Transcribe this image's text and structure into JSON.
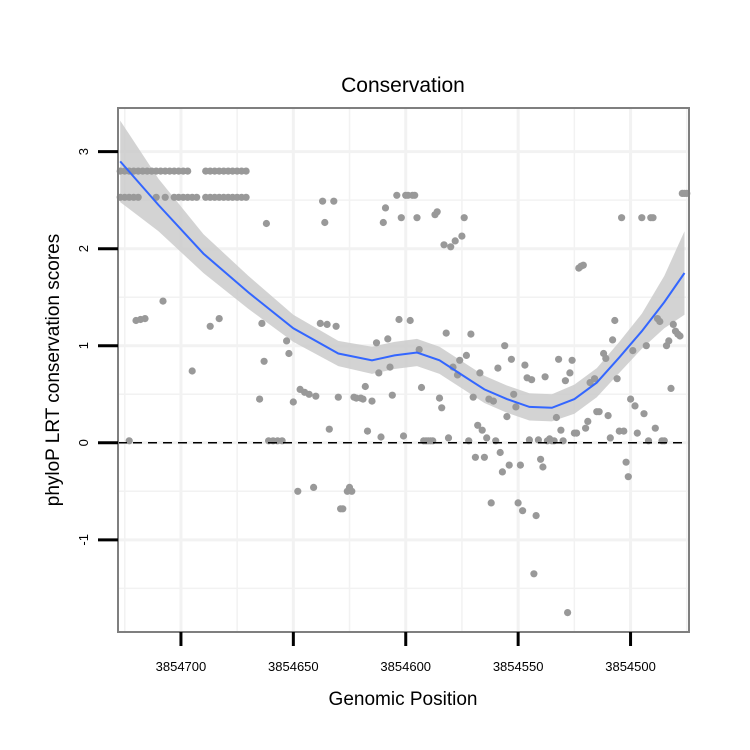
{
  "chart_data": {
    "type": "scatter",
    "title": "Conservation",
    "xlabel": "Genomic Position",
    "ylabel": "phyloP LRT conservation scores",
    "x_reversed": true,
    "xlim": [
      3854728,
      3854474
    ],
    "ylim": [
      -1.95,
      3.45
    ],
    "x_ticks": [
      3854700,
      3854650,
      3854600,
      3854550,
      3854500
    ],
    "x_tick_labels": [
      "3854700",
      "3854650",
      "3854600",
      "3854550",
      "3854500"
    ],
    "y_ticks": [
      -1,
      0,
      1,
      2,
      3
    ],
    "y_tick_labels": [
      "-1",
      "0",
      "1",
      "2",
      "3"
    ],
    "grid": true,
    "reference_line": {
      "y": 0,
      "style": "dashed"
    },
    "colors": {
      "points": "#999999",
      "smooth_line": "#3366FF",
      "confidence_band": "#C8C8C8",
      "panel_border": "#7F7F7F",
      "grid": "#F2F2F2"
    },
    "series": [
      {
        "values": [
          [
            3854727,
            2.53
          ],
          [
            3854725,
            2.53
          ],
          [
            3854723,
            2.53
          ],
          [
            3854721,
            2.53
          ],
          [
            3854719,
            2.53
          ],
          [
            3854727,
            2.8
          ],
          [
            3854725,
            2.8
          ],
          [
            3854723,
            2.8
          ],
          [
            3854721,
            2.8
          ],
          [
            3854719,
            2.8
          ],
          [
            3854717,
            2.8
          ],
          [
            3854715,
            2.8
          ],
          [
            3854713,
            2.8
          ],
          [
            3854711,
            2.8
          ],
          [
            3854709,
            2.8
          ],
          [
            3854707,
            2.8
          ],
          [
            3854705,
            2.8
          ],
          [
            3854703,
            2.8
          ],
          [
            3854701,
            2.8
          ],
          [
            3854699,
            2.8
          ],
          [
            3854697,
            2.8
          ],
          [
            3854711,
            2.53
          ],
          [
            3854707,
            2.53
          ],
          [
            3854703,
            2.53
          ],
          [
            3854701,
            2.53
          ],
          [
            3854699,
            2.53
          ],
          [
            3854697,
            2.53
          ],
          [
            3854695,
            2.53
          ],
          [
            3854693,
            2.53
          ],
          [
            3854689,
            2.53
          ],
          [
            3854687,
            2.53
          ],
          [
            3854685,
            2.53
          ],
          [
            3854683,
            2.53
          ],
          [
            3854681,
            2.53
          ],
          [
            3854679,
            2.53
          ],
          [
            3854677,
            2.53
          ],
          [
            3854675,
            2.53
          ],
          [
            3854673,
            2.53
          ],
          [
            3854671,
            2.53
          ],
          [
            3854689,
            2.8
          ],
          [
            3854687,
            2.8
          ],
          [
            3854685,
            2.8
          ],
          [
            3854683,
            2.8
          ],
          [
            3854681,
            2.8
          ],
          [
            3854679,
            2.8
          ],
          [
            3854677,
            2.8
          ],
          [
            3854675,
            2.8
          ],
          [
            3854673,
            2.8
          ],
          [
            3854671,
            2.8
          ],
          [
            3854723,
            0.02
          ],
          [
            3854720,
            1.26
          ],
          [
            3854718,
            1.27
          ],
          [
            3854716,
            1.28
          ],
          [
            3854708,
            1.46
          ],
          [
            3854695,
            0.74
          ],
          [
            3854687,
            1.2
          ],
          [
            3854683,
            1.28
          ],
          [
            3854664,
            1.23
          ],
          [
            3854663,
            0.84
          ],
          [
            3854662,
            2.26
          ],
          [
            3854665,
            0.45
          ],
          [
            3854661,
            0.02
          ],
          [
            3854659,
            0.02
          ],
          [
            3854657,
            0.02
          ],
          [
            3854655,
            0.02
          ],
          [
            3854653,
            1.05
          ],
          [
            3854652,
            0.92
          ],
          [
            3854650,
            0.42
          ],
          [
            3854648,
            -0.5
          ],
          [
            3854647,
            0.55
          ],
          [
            3854645,
            0.52
          ],
          [
            3854643,
            0.5
          ],
          [
            3854641,
            -0.46
          ],
          [
            3854640,
            0.48
          ],
          [
            3854638,
            1.23
          ],
          [
            3854637,
            2.49
          ],
          [
            3854636,
            2.27
          ],
          [
            3854635,
            1.22
          ],
          [
            3854634,
            0.14
          ],
          [
            3854632,
            2.49
          ],
          [
            3854631,
            1.2
          ],
          [
            3854630,
            0.47
          ],
          [
            3854629,
            -0.68
          ],
          [
            3854628,
            -0.68
          ],
          [
            3854626,
            -0.5
          ],
          [
            3854625,
            -0.46
          ],
          [
            3854624,
            -0.5
          ],
          [
            3854623,
            0.47
          ],
          [
            3854622,
            0.46
          ],
          [
            3854620,
            0.46
          ],
          [
            3854619,
            0.45
          ],
          [
            3854618,
            0.58
          ],
          [
            3854617,
            0.12
          ],
          [
            3854615,
            0.43
          ],
          [
            3854613,
            1.03
          ],
          [
            3854612,
            0.72
          ],
          [
            3854611,
            0.06
          ],
          [
            3854610,
            2.27
          ],
          [
            3854609,
            2.42
          ],
          [
            3854608,
            1.07
          ],
          [
            3854607,
            0.78
          ],
          [
            3854606,
            0.49
          ],
          [
            3854604,
            2.55
          ],
          [
            3854603,
            1.27
          ],
          [
            3854602,
            2.32
          ],
          [
            3854601,
            0.07
          ],
          [
            3854600,
            2.55
          ],
          [
            3854599,
            2.55
          ],
          [
            3854598,
            1.26
          ],
          [
            3854597,
            2.55
          ],
          [
            3854596,
            2.55
          ],
          [
            3854595,
            2.32
          ],
          [
            3854594,
            0.96
          ],
          [
            3854593,
            0.57
          ],
          [
            3854592,
            0.02
          ],
          [
            3854591,
            0.02
          ],
          [
            3854590,
            0.02
          ],
          [
            3854589,
            0.02
          ],
          [
            3854588,
            0.02
          ],
          [
            3854587,
            2.35
          ],
          [
            3854586,
            2.38
          ],
          [
            3854585,
            0.46
          ],
          [
            3854584,
            0.36
          ],
          [
            3854583,
            2.04
          ],
          [
            3854582,
            1.13
          ],
          [
            3854581,
            0.05
          ],
          [
            3854580,
            2.02
          ],
          [
            3854579,
            0.78
          ],
          [
            3854578,
            2.08
          ],
          [
            3854577,
            0.7
          ],
          [
            3854576,
            0.85
          ],
          [
            3854575,
            2.13
          ],
          [
            3854574,
            2.32
          ],
          [
            3854573,
            0.9
          ],
          [
            3854572,
            0.02
          ],
          [
            3854571,
            1.12
          ],
          [
            3854570,
            0.47
          ],
          [
            3854569,
            -0.15
          ],
          [
            3854568,
            0.18
          ],
          [
            3854567,
            0.72
          ],
          [
            3854566,
            0.13
          ],
          [
            3854565,
            -0.15
          ],
          [
            3854564,
            0.05
          ],
          [
            3854563,
            0.45
          ],
          [
            3854562,
            -0.62
          ],
          [
            3854561,
            0.43
          ],
          [
            3854560,
            0.02
          ],
          [
            3854559,
            0.77
          ],
          [
            3854558,
            -0.1
          ],
          [
            3854557,
            -0.3
          ],
          [
            3854556,
            1.0
          ],
          [
            3854555,
            0.27
          ],
          [
            3854554,
            -0.23
          ],
          [
            3854553,
            0.86
          ],
          [
            3854552,
            0.5
          ],
          [
            3854551,
            0.37
          ],
          [
            3854550,
            -0.62
          ],
          [
            3854549,
            -0.23
          ],
          [
            3854548,
            -0.7
          ],
          [
            3854547,
            0.8
          ],
          [
            3854546,
            0.67
          ],
          [
            3854545,
            0.03
          ],
          [
            3854544,
            0.65
          ],
          [
            3854543,
            -1.35
          ],
          [
            3854542,
            -0.75
          ],
          [
            3854541,
            0.03
          ],
          [
            3854540,
            -0.17
          ],
          [
            3854539,
            -0.25
          ],
          [
            3854538,
            0.68
          ],
          [
            3854537,
            0.02
          ],
          [
            3854536,
            0.04
          ],
          [
            3854535,
            0.02
          ],
          [
            3854534,
            0.02
          ],
          [
            3854533,
            0.26
          ],
          [
            3854532,
            0.86
          ],
          [
            3854531,
            0.13
          ],
          [
            3854530,
            0.02
          ],
          [
            3854529,
            0.64
          ],
          [
            3854528,
            -1.75
          ],
          [
            3854527,
            0.72
          ],
          [
            3854526,
            0.85
          ],
          [
            3854525,
            0.1
          ],
          [
            3854524,
            0.1
          ],
          [
            3854523,
            1.8
          ],
          [
            3854522,
            1.82
          ],
          [
            3854521,
            1.83
          ],
          [
            3854520,
            0.15
          ],
          [
            3854519,
            0.22
          ],
          [
            3854518,
            0.62
          ],
          [
            3854516,
            0.66
          ],
          [
            3854515,
            0.32
          ],
          [
            3854514,
            0.32
          ],
          [
            3854512,
            0.92
          ],
          [
            3854511,
            0.87
          ],
          [
            3854510,
            0.28
          ],
          [
            3854509,
            0.05
          ],
          [
            3854508,
            1.06
          ],
          [
            3854507,
            1.26
          ],
          [
            3854506,
            0.66
          ],
          [
            3854505,
            0.12
          ],
          [
            3854504,
            2.32
          ],
          [
            3854503,
            0.12
          ],
          [
            3854502,
            -0.2
          ],
          [
            3854501,
            -0.35
          ],
          [
            3854500,
            0.45
          ],
          [
            3854499,
            0.95
          ],
          [
            3854498,
            0.38
          ],
          [
            3854497,
            0.1
          ],
          [
            3854495,
            2.32
          ],
          [
            3854494,
            0.3
          ],
          [
            3854493,
            1.0
          ],
          [
            3854492,
            0.02
          ],
          [
            3854491,
            2.32
          ],
          [
            3854490,
            2.32
          ],
          [
            3854489,
            0.15
          ],
          [
            3854488,
            1.28
          ],
          [
            3854487,
            1.25
          ],
          [
            3854486,
            0.02
          ],
          [
            3854485,
            0.02
          ],
          [
            3854484,
            1.0
          ],
          [
            3854483,
            1.05
          ],
          [
            3854482,
            0.56
          ],
          [
            3854481,
            1.22
          ],
          [
            3854480,
            1.15
          ],
          [
            3854479,
            1.12
          ],
          [
            3854478,
            1.1
          ],
          [
            3854477,
            2.57
          ],
          [
            3854476,
            2.57
          ],
          [
            3854475,
            2.57
          ]
        ]
      }
    ],
    "smooth": {
      "x": [
        3854727,
        3854710,
        3854690,
        3854670,
        3854650,
        3854630,
        3854615,
        3854605,
        3854595,
        3854585,
        3854575,
        3854565,
        3854555,
        3854545,
        3854535,
        3854525,
        3854515,
        3854505,
        3854495,
        3854485,
        3854476
      ],
      "y": [
        2.9,
        2.45,
        1.95,
        1.55,
        1.18,
        0.92,
        0.85,
        0.9,
        0.93,
        0.85,
        0.7,
        0.55,
        0.45,
        0.37,
        0.36,
        0.45,
        0.62,
        0.88,
        1.15,
        1.45,
        1.75
      ],
      "upper": [
        3.32,
        2.72,
        2.15,
        1.72,
        1.32,
        1.05,
        0.99,
        1.04,
        1.07,
        0.99,
        0.84,
        0.69,
        0.59,
        0.51,
        0.5,
        0.6,
        0.77,
        1.04,
        1.33,
        1.72,
        2.18
      ],
      "lower": [
        2.48,
        2.18,
        1.75,
        1.38,
        1.04,
        0.79,
        0.71,
        0.76,
        0.79,
        0.71,
        0.56,
        0.41,
        0.31,
        0.23,
        0.22,
        0.3,
        0.47,
        0.72,
        0.97,
        1.18,
        1.32
      ]
    }
  }
}
